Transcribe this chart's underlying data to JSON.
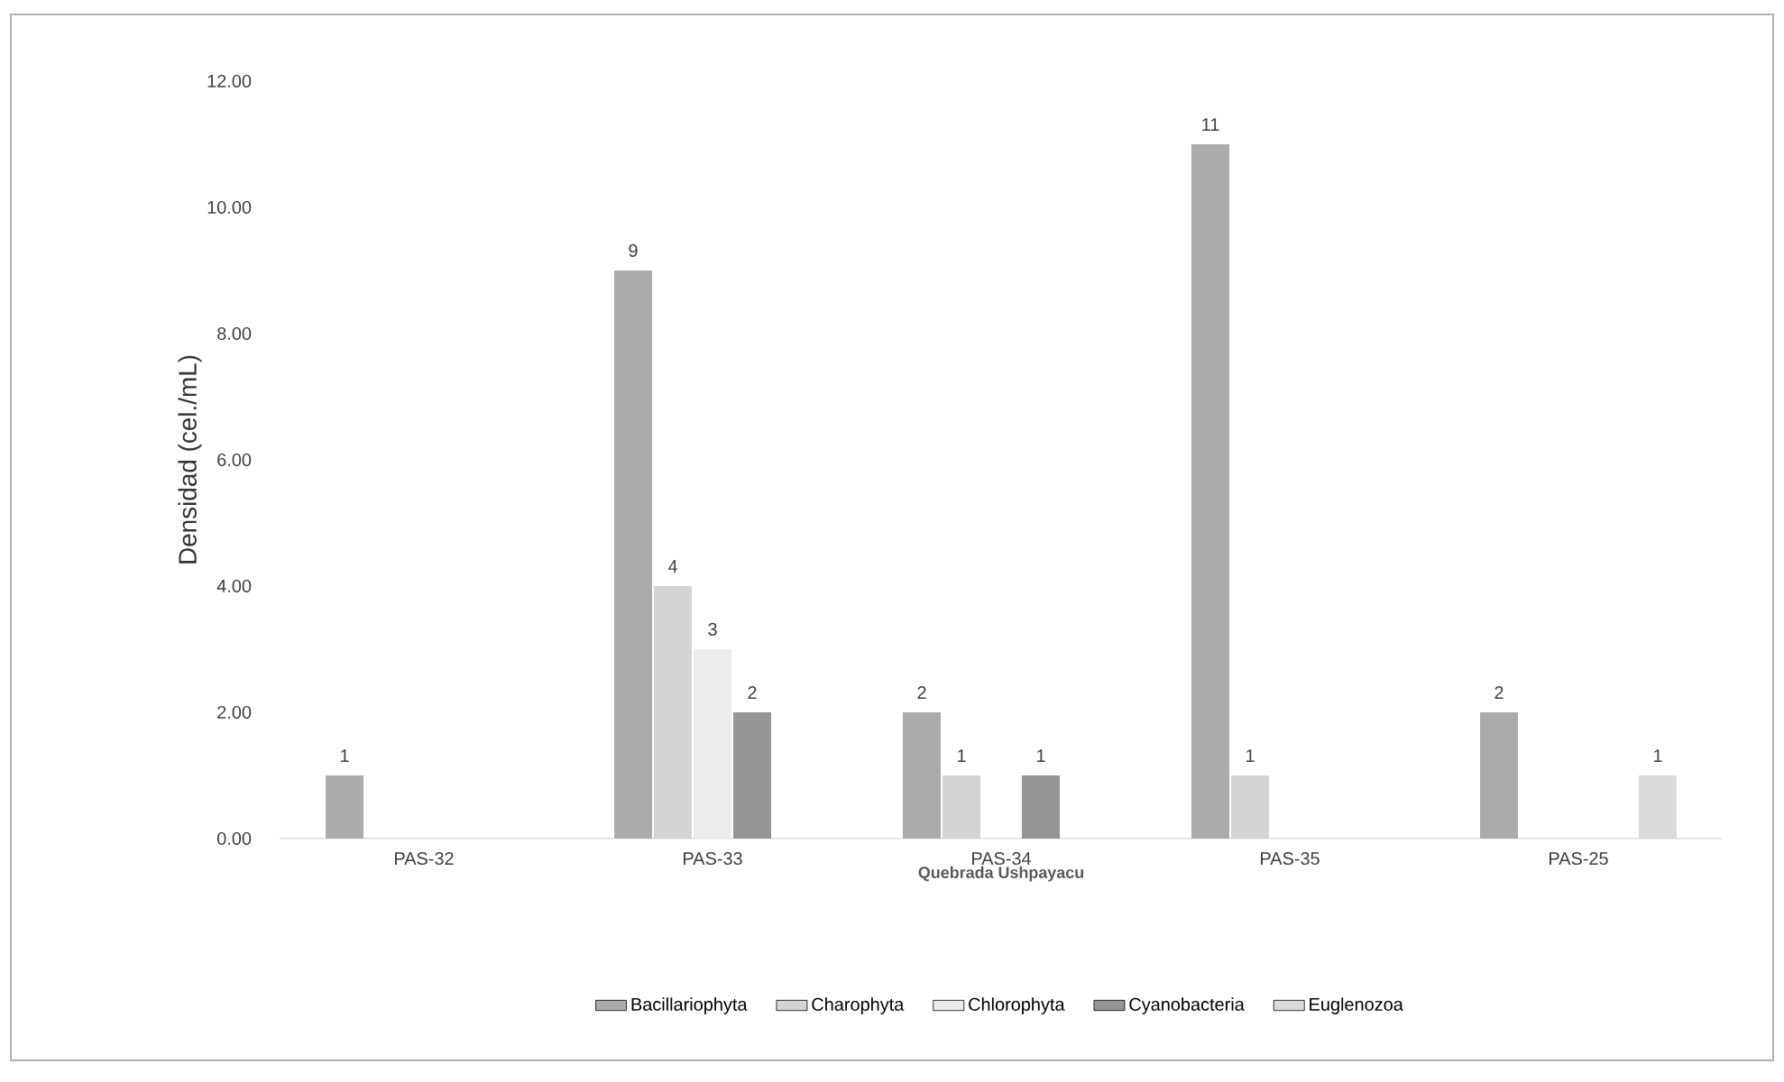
{
  "chart_data": {
    "type": "bar",
    "xlabel": "Quebrada Ushpayacu",
    "ylabel": "Densidad (cel./mL)",
    "categories": [
      "PAS-32",
      "PAS-33",
      "PAS-34",
      "PAS-35",
      "PAS-25"
    ],
    "series": [
      {
        "name": "Bacillariophyta",
        "color": "#ababab",
        "values": [
          1,
          9,
          2,
          11,
          2
        ]
      },
      {
        "name": "Charophyta",
        "color": "#d4d4d4",
        "values": [
          null,
          4,
          1,
          1,
          null
        ]
      },
      {
        "name": "Chlorophyta",
        "color": "#ececec",
        "values": [
          null,
          3,
          null,
          null,
          null
        ]
      },
      {
        "name": "Cyanobacteria",
        "color": "#959595",
        "values": [
          null,
          2,
          1,
          null,
          null
        ]
      },
      {
        "name": "Euglenozoa",
        "color": "#dadada",
        "values": [
          null,
          null,
          null,
          null,
          1
        ]
      }
    ],
    "ylim": [
      0,
      12
    ],
    "yticks": [
      {
        "value": 0,
        "label": "0.00"
      },
      {
        "value": 2,
        "label": "2.00"
      },
      {
        "value": 4,
        "label": "4.00"
      },
      {
        "value": 6,
        "label": "6.00"
      },
      {
        "value": 8,
        "label": "8.00"
      },
      {
        "value": 10,
        "label": "10.00"
      },
      {
        "value": 12,
        "label": "12.00"
      }
    ],
    "data_labels": true,
    "legend": "bottom"
  }
}
